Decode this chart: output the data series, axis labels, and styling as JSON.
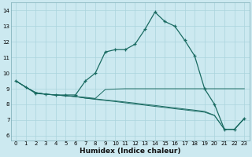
{
  "xlabel": "Humidex (Indice chaleur)",
  "bg_color": "#cce9f0",
  "grid_color": "#aad4dd",
  "line_color": "#1a6b62",
  "xlim": [
    -0.5,
    23.5
  ],
  "ylim": [
    5.7,
    14.5
  ],
  "yticks": [
    6,
    7,
    8,
    9,
    10,
    11,
    12,
    13,
    14
  ],
  "xticks": [
    0,
    1,
    2,
    3,
    4,
    5,
    6,
    7,
    8,
    9,
    10,
    11,
    12,
    13,
    14,
    15,
    16,
    17,
    18,
    19,
    20,
    21,
    22,
    23
  ],
  "main_x": [
    0,
    1,
    2,
    3,
    4,
    5,
    6,
    7,
    8,
    9,
    10,
    11,
    12,
    13,
    14,
    15,
    16,
    17,
    18,
    19,
    20,
    21,
    22,
    23
  ],
  "main_y": [
    9.5,
    9.1,
    8.7,
    8.65,
    8.6,
    8.6,
    8.6,
    9.5,
    10.0,
    11.35,
    11.5,
    11.5,
    11.85,
    12.8,
    13.9,
    13.3,
    13.0,
    12.1,
    11.1,
    9.0,
    8.0,
    6.4,
    6.4,
    7.1
  ],
  "flat1_x": [
    0,
    1,
    2,
    3,
    4,
    5,
    6,
    7,
    8,
    9,
    10,
    11,
    12,
    13,
    14,
    15,
    16,
    17,
    18,
    19,
    20,
    21,
    22,
    23
  ],
  "flat1_y": [
    9.5,
    9.1,
    8.75,
    8.65,
    8.6,
    8.55,
    8.5,
    8.45,
    8.38,
    8.95,
    8.98,
    9.0,
    9.0,
    9.0,
    9.0,
    9.0,
    9.0,
    9.0,
    9.0,
    9.0,
    9.0,
    9.0,
    9.0,
    9.0
  ],
  "flat2_x": [
    0,
    1,
    2,
    3,
    4,
    5,
    6,
    7,
    8,
    9,
    10,
    11,
    12,
    13,
    14,
    15,
    16,
    17,
    18,
    19,
    20,
    21,
    22,
    23
  ],
  "flat2_y": [
    9.5,
    9.1,
    8.75,
    8.65,
    8.6,
    8.55,
    8.5,
    8.4,
    8.35,
    8.28,
    8.22,
    8.15,
    8.08,
    8.0,
    7.93,
    7.85,
    7.78,
    7.7,
    7.63,
    7.55,
    7.3,
    6.4,
    6.4,
    7.1
  ],
  "flat3_x": [
    0,
    1,
    2,
    3,
    4,
    5,
    6,
    7,
    8,
    9,
    10,
    11,
    12,
    13,
    14,
    15,
    16,
    17,
    18,
    19,
    20,
    21,
    22,
    23
  ],
  "flat3_y": [
    9.5,
    9.1,
    8.75,
    8.65,
    8.6,
    8.55,
    8.5,
    8.4,
    8.32,
    8.25,
    8.18,
    8.1,
    8.02,
    7.95,
    7.87,
    7.8,
    7.72,
    7.65,
    7.57,
    7.5,
    7.28,
    6.4,
    6.4,
    7.1
  ]
}
